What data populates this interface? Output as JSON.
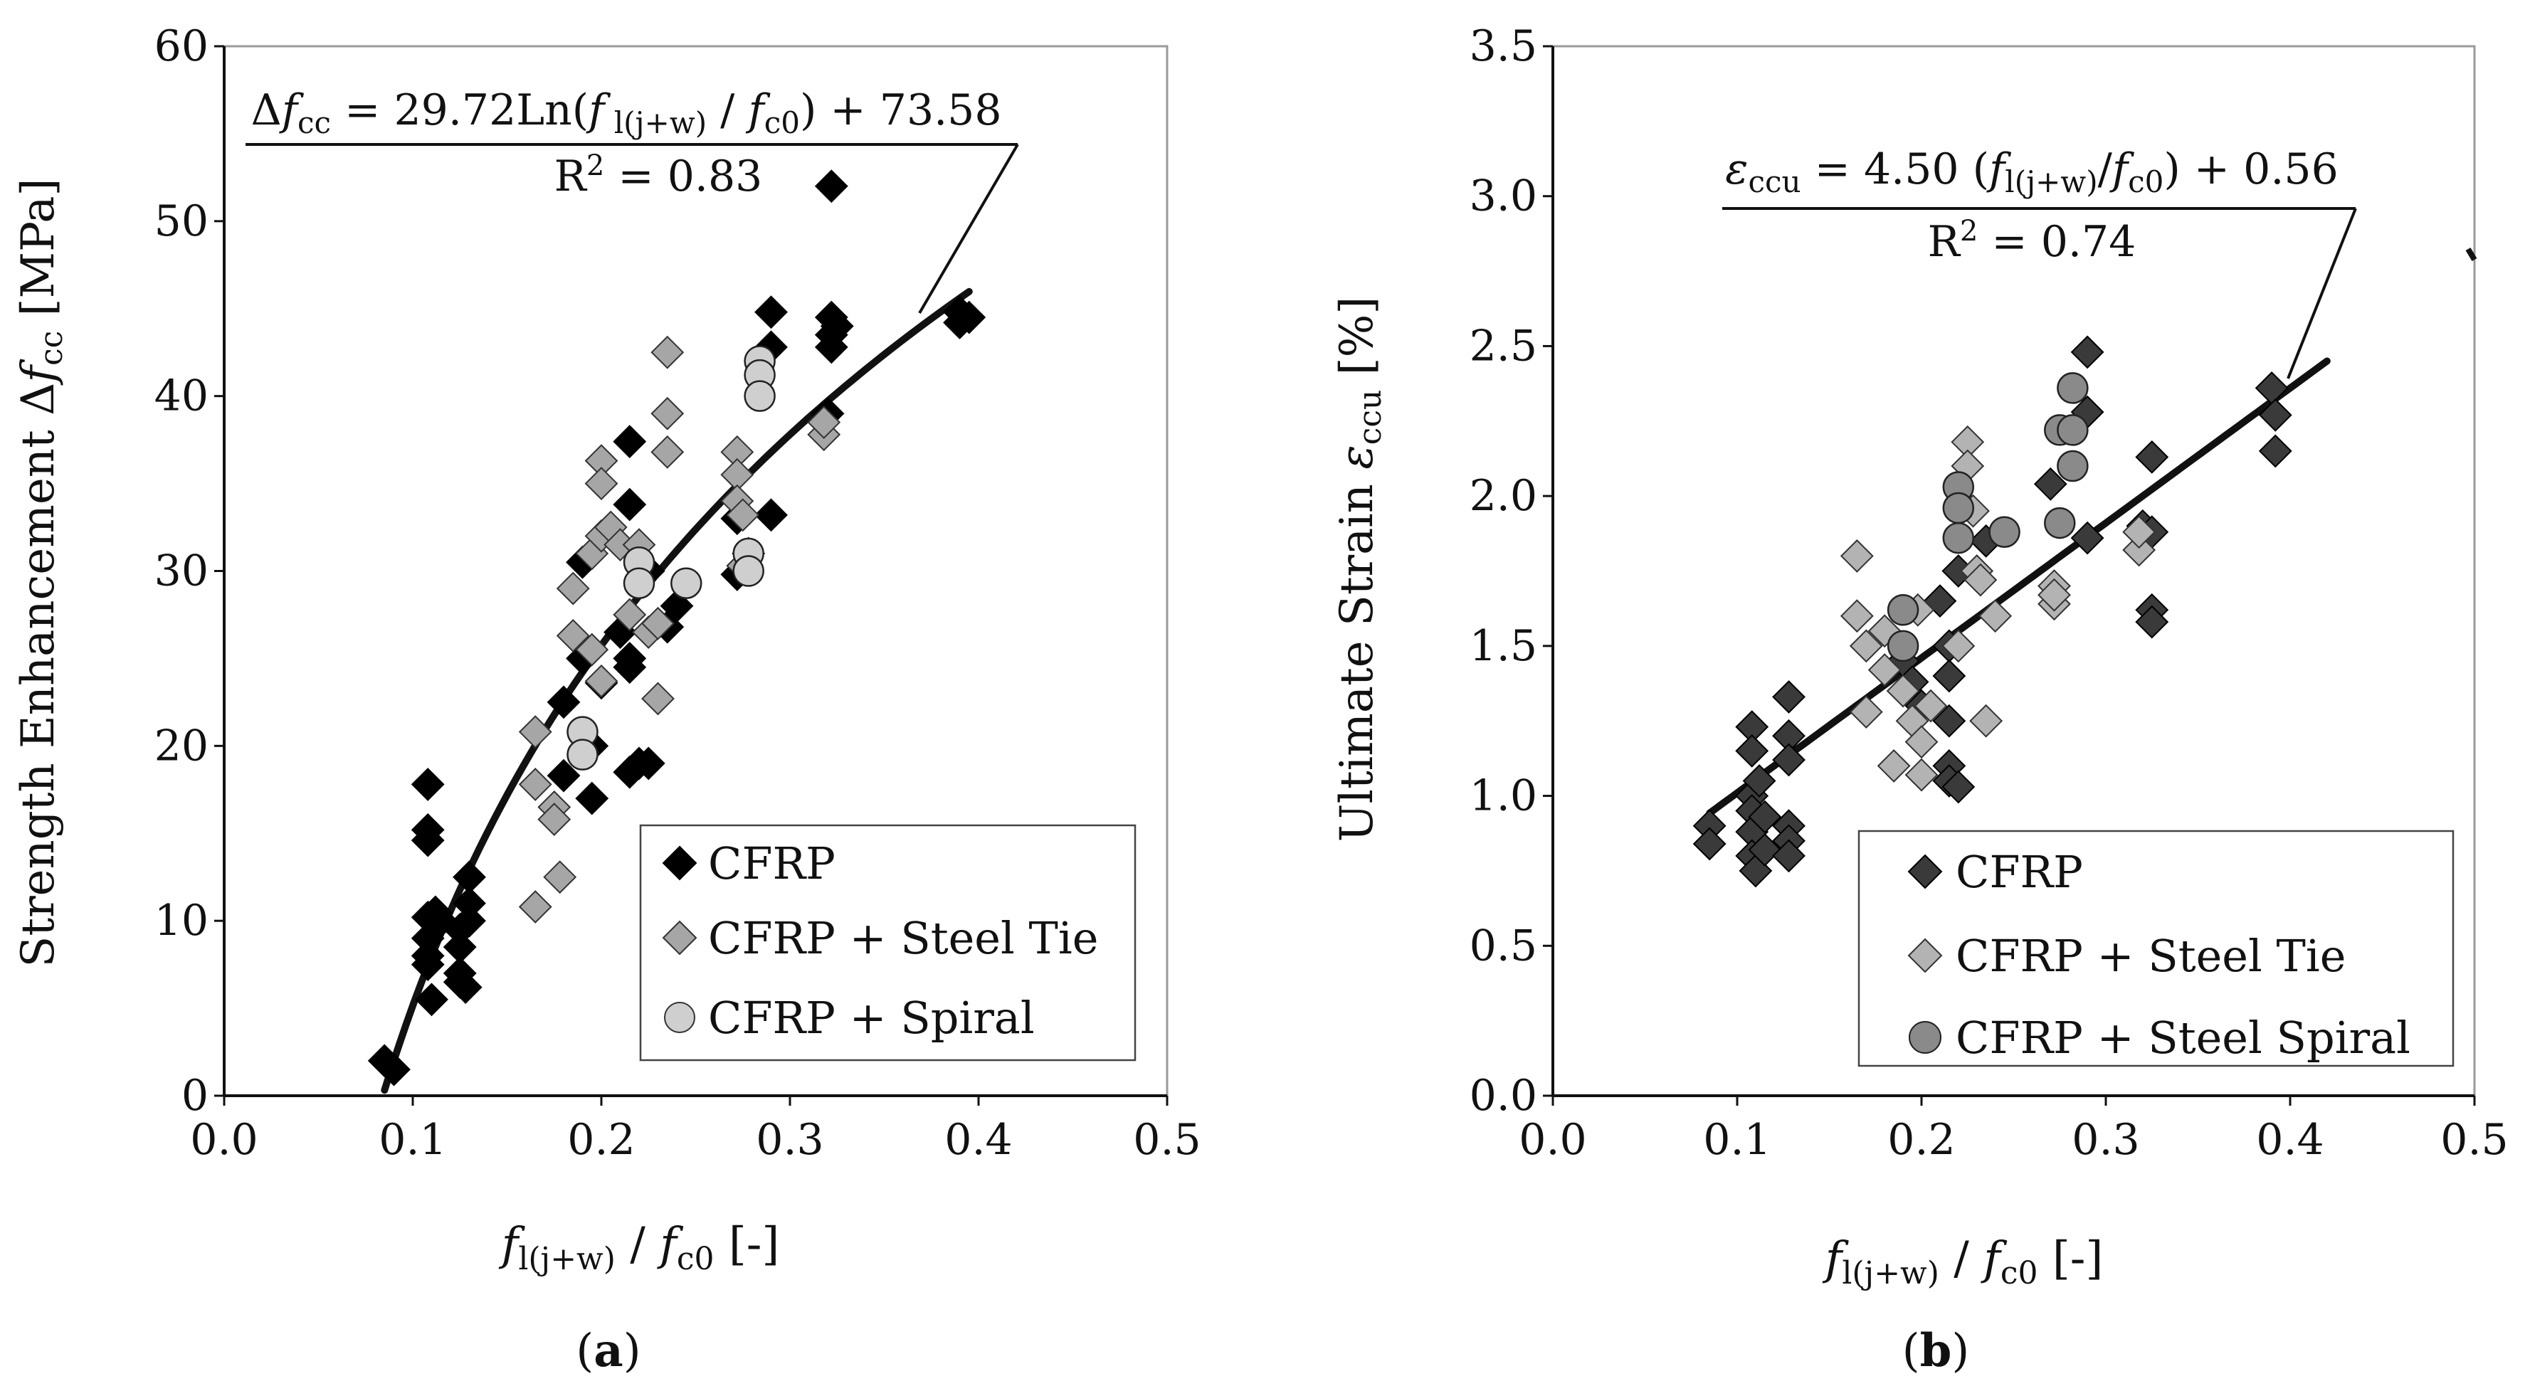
{
  "chart_data": [
    {
      "type": "scatter",
      "panel_caption": {
        "open": "(",
        "letter": "a",
        "close": ")"
      },
      "xlabel": {
        "p1": "f",
        "p1sub": "l(j+w)",
        "p2": " / ",
        "p3": "f",
        "p3sub": "c0",
        "p4": "  [-]"
      },
      "ylabel": {
        "p1": "Strength Enhancement Δ",
        "p2": "f",
        "p2sub": "cc",
        "p3": " [MPa]"
      },
      "xlim": [
        0,
        0.5
      ],
      "ylim": [
        0,
        60
      ],
      "xticks": [
        "0.0",
        "0.1",
        "0.2",
        "0.3",
        "0.4",
        "0.5"
      ],
      "yticks": [
        "0",
        "10",
        "20",
        "30",
        "40",
        "50",
        "60"
      ],
      "fit": {
        "type": "log",
        "a": 29.72,
        "b": 73.58,
        "x_range": [
          0.085,
          0.395
        ],
        "eq": {
          "p1": "Δ",
          "p2": "f",
          "p2sub": "cc",
          "p3": " = 29.72Ln(",
          "p4": "f",
          "p4sub": " l(j+w)",
          "p5": " / ",
          "p6": "f",
          "p6sub": "c0",
          "p7": ") + 73.58"
        },
        "r2": {
          "p1": "R",
          "sup": "2",
          "p2": " = 0.83"
        }
      },
      "legend": [
        "CFRP",
        "CFRP + Steel Tie",
        "CFRP + Spiral"
      ],
      "series": [
        {
          "name": "CFRP",
          "marker": "diamond",
          "color": "#000000",
          "points": [
            [
              0.085,
              2.0
            ],
            [
              0.09,
              1.5
            ],
            [
              0.108,
              17.8
            ],
            [
              0.108,
              15.2
            ],
            [
              0.108,
              14.6
            ],
            [
              0.108,
              10.2
            ],
            [
              0.108,
              9.0
            ],
            [
              0.108,
              8.0
            ],
            [
              0.108,
              7.5
            ],
            [
              0.11,
              5.5
            ],
            [
              0.112,
              10.5
            ],
            [
              0.115,
              10.0
            ],
            [
              0.125,
              9.5
            ],
            [
              0.125,
              8.5
            ],
            [
              0.125,
              7.0
            ],
            [
              0.125,
              6.5
            ],
            [
              0.128,
              6.2
            ],
            [
              0.13,
              12.5
            ],
            [
              0.13,
              11.0
            ],
            [
              0.13,
              10.0
            ],
            [
              0.18,
              22.5
            ],
            [
              0.18,
              18.3
            ],
            [
              0.19,
              30.5
            ],
            [
              0.19,
              25.0
            ],
            [
              0.195,
              20.0
            ],
            [
              0.195,
              17.0
            ],
            [
              0.2,
              23.6
            ],
            [
              0.21,
              26.5
            ],
            [
              0.215,
              37.4
            ],
            [
              0.215,
              33.8
            ],
            [
              0.215,
              25.0
            ],
            [
              0.215,
              24.5
            ],
            [
              0.215,
              18.5
            ],
            [
              0.22,
              19.0
            ],
            [
              0.225,
              30.0
            ],
            [
              0.225,
              19.0
            ],
            [
              0.235,
              26.8
            ],
            [
              0.24,
              28.0
            ],
            [
              0.272,
              33.0
            ],
            [
              0.272,
              29.8
            ],
            [
              0.278,
              31.0
            ],
            [
              0.29,
              44.8
            ],
            [
              0.29,
              42.8
            ],
            [
              0.29,
              33.2
            ],
            [
              0.32,
              39.0
            ],
            [
              0.322,
              52.0
            ],
            [
              0.322,
              44.5
            ],
            [
              0.322,
              43.5
            ],
            [
              0.322,
              42.8
            ],
            [
              0.325,
              44.0
            ],
            [
              0.39,
              44.8
            ],
            [
              0.39,
              44.2
            ],
            [
              0.395,
              44.5
            ]
          ]
        },
        {
          "name": "CFRP + Steel Tie",
          "marker": "diamond",
          "color": "#a6a6a6",
          "points": [
            [
              0.165,
              20.8
            ],
            [
              0.165,
              17.8
            ],
            [
              0.165,
              10.8
            ],
            [
              0.175,
              16.5
            ],
            [
              0.175,
              15.8
            ],
            [
              0.178,
              12.5
            ],
            [
              0.185,
              29.0
            ],
            [
              0.185,
              26.3
            ],
            [
              0.195,
              31.0
            ],
            [
              0.195,
              25.5
            ],
            [
              0.2,
              36.3
            ],
            [
              0.2,
              35.0
            ],
            [
              0.2,
              32.0
            ],
            [
              0.2,
              23.7
            ],
            [
              0.205,
              32.5
            ],
            [
              0.21,
              31.5
            ],
            [
              0.215,
              27.5
            ],
            [
              0.22,
              31.5
            ],
            [
              0.225,
              26.5
            ],
            [
              0.23,
              27.0
            ],
            [
              0.23,
              22.7
            ],
            [
              0.235,
              42.5
            ],
            [
              0.235,
              39.0
            ],
            [
              0.235,
              36.8
            ],
            [
              0.272,
              36.8
            ],
            [
              0.272,
              35.5
            ],
            [
              0.272,
              34.0
            ],
            [
              0.275,
              33.2
            ],
            [
              0.275,
              30.3
            ],
            [
              0.318,
              37.8
            ],
            [
              0.318,
              38.5
            ]
          ]
        },
        {
          "name": "CFRP + Spiral",
          "marker": "circle",
          "color": "#cfcfcf",
          "points": [
            [
              0.19,
              20.8
            ],
            [
              0.19,
              19.5
            ],
            [
              0.22,
              30.5
            ],
            [
              0.22,
              29.3
            ],
            [
              0.245,
              29.3
            ],
            [
              0.278,
              31.0
            ],
            [
              0.278,
              30.0
            ],
            [
              0.284,
              42.0
            ],
            [
              0.284,
              41.2
            ],
            [
              0.284,
              40.0
            ]
          ]
        }
      ]
    },
    {
      "type": "scatter",
      "panel_caption": {
        "open": "(",
        "letter": "b",
        "close": ")"
      },
      "xlabel": {
        "p1": "f",
        "p1sub": "l(j+w)",
        "p2": " / ",
        "p3": "f",
        "p3sub": "c0",
        "p4": " [-]"
      },
      "ylabel": {
        "p1": "Ultimate Strain ",
        "p2": "ε",
        "p2sub": "ccu",
        "p3": " [%]"
      },
      "xlim": [
        0,
        0.5
      ],
      "ylim": [
        0,
        3.5
      ],
      "xticks": [
        "0.0",
        "0.1",
        "0.2",
        "0.3",
        "0.4",
        "0.5"
      ],
      "yticks": [
        "0.0",
        "0.5",
        "1.0",
        "1.5",
        "2.0",
        "2.5",
        "3.0",
        "3.5"
      ],
      "fit": {
        "type": "linear",
        "slope": 4.5,
        "intercept": 0.56,
        "x_range": [
          0.085,
          0.42
        ],
        "eq": {
          "p1": "ε",
          "p1sub": "ccu",
          "p2": " = 4.50 (",
          "p3": "f",
          "p3sub": "l(j+w)",
          "p4": "/",
          "p5": "f",
          "p5sub": "c0",
          "p6": ") + 0.56"
        },
        "r2": {
          "p1": "R",
          "sup": "2",
          "p2": " = 0.74"
        }
      },
      "legend": [
        "CFRP",
        "CFRP + Steel Tie",
        "CFRP + Steel Spiral"
      ],
      "series": [
        {
          "name": "CFRP",
          "marker": "diamond",
          "color": "#3a3a3a",
          "points": [
            [
              0.085,
              0.9
            ],
            [
              0.085,
              0.84
            ],
            [
              0.108,
              1.23
            ],
            [
              0.108,
              1.15
            ],
            [
              0.108,
              1.0
            ],
            [
              0.108,
              0.95
            ],
            [
              0.108,
              0.88
            ],
            [
              0.108,
              0.8
            ],
            [
              0.11,
              0.75
            ],
            [
              0.112,
              1.05
            ],
            [
              0.115,
              0.93
            ],
            [
              0.115,
              0.82
            ],
            [
              0.128,
              1.33
            ],
            [
              0.128,
              1.2
            ],
            [
              0.128,
              1.12
            ],
            [
              0.128,
              0.9
            ],
            [
              0.128,
              0.85
            ],
            [
              0.128,
              0.8
            ],
            [
              0.19,
              1.45
            ],
            [
              0.195,
              1.38
            ],
            [
              0.2,
              1.3
            ],
            [
              0.21,
              1.65
            ],
            [
              0.215,
              1.5
            ],
            [
              0.215,
              1.4
            ],
            [
              0.215,
              1.25
            ],
            [
              0.215,
              1.1
            ],
            [
              0.215,
              1.05
            ],
            [
              0.22,
              1.03
            ],
            [
              0.22,
              1.75
            ],
            [
              0.235,
              1.85
            ],
            [
              0.27,
              2.04
            ],
            [
              0.29,
              2.48
            ],
            [
              0.29,
              2.28
            ],
            [
              0.29,
              1.86
            ],
            [
              0.32,
              1.9
            ],
            [
              0.325,
              2.13
            ],
            [
              0.325,
              1.62
            ],
            [
              0.325,
              1.58
            ],
            [
              0.325,
              1.88
            ],
            [
              0.39,
              2.36
            ],
            [
              0.392,
              2.27
            ],
            [
              0.392,
              2.15
            ]
          ]
        },
        {
          "name": "CFRP + Steel Tie",
          "marker": "diamond",
          "color": "#b3b3b3",
          "points": [
            [
              0.165,
              1.8
            ],
            [
              0.165,
              1.6
            ],
            [
              0.17,
              1.5
            ],
            [
              0.17,
              1.28
            ],
            [
              0.18,
              1.55
            ],
            [
              0.18,
              1.42
            ],
            [
              0.185,
              1.1
            ],
            [
              0.19,
              1.35
            ],
            [
              0.195,
              1.25
            ],
            [
              0.198,
              1.62
            ],
            [
              0.2,
              1.18
            ],
            [
              0.2,
              1.07
            ],
            [
              0.205,
              1.3
            ],
            [
              0.22,
              1.5
            ],
            [
              0.225,
              2.18
            ],
            [
              0.225,
              2.1
            ],
            [
              0.228,
              1.95
            ],
            [
              0.23,
              1.75
            ],
            [
              0.232,
              1.72
            ],
            [
              0.235,
              1.25
            ],
            [
              0.24,
              1.6
            ],
            [
              0.272,
              1.7
            ],
            [
              0.272,
              1.64
            ],
            [
              0.272,
              1.67
            ],
            [
              0.318,
              1.82
            ],
            [
              0.318,
              1.88
            ]
          ]
        },
        {
          "name": "CFRP + Steel Spiral",
          "marker": "circle",
          "color": "#8a8a8a",
          "points": [
            [
              0.19,
              1.62
            ],
            [
              0.19,
              1.5
            ],
            [
              0.22,
              2.03
            ],
            [
              0.22,
              1.96
            ],
            [
              0.22,
              1.86
            ],
            [
              0.245,
              1.88
            ],
            [
              0.275,
              2.22
            ],
            [
              0.275,
              1.91
            ],
            [
              0.282,
              2.36
            ],
            [
              0.282,
              2.22
            ],
            [
              0.282,
              2.1
            ]
          ]
        }
      ]
    }
  ]
}
